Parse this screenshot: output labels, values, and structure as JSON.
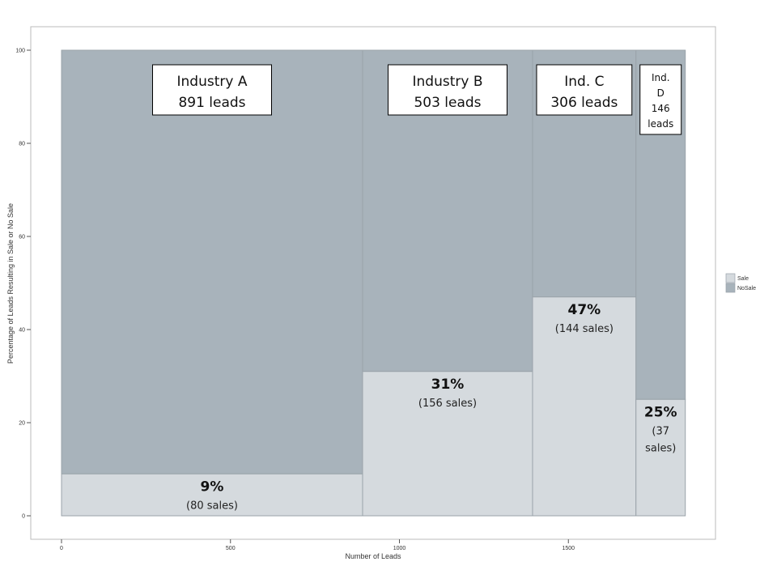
{
  "chart_data": {
    "type": "mosaic",
    "xlabel": "Number of Leads",
    "ylabel": "Percentage of Leads Resulting in Sale or No Sale",
    "xlim": [
      0,
      1846
    ],
    "ylim": [
      0,
      100
    ],
    "x_ticks": [
      0,
      500,
      1000,
      1500
    ],
    "y_ticks": [
      0,
      20,
      40,
      60,
      80,
      100
    ],
    "grid": false,
    "legend": {
      "position": "right",
      "entries": [
        {
          "key": "sale",
          "label": "Sale",
          "color": "#d5dade"
        },
        {
          "key": "nosale",
          "label": "NoSale",
          "color": "#a8b3bb"
        }
      ]
    },
    "segments": [
      {
        "leads": 891,
        "sales": 80,
        "sale_pct": 9,
        "box_lines": [
          "Industry A",
          "891 leads"
        ],
        "pct_text": "9%",
        "sub_lines": [
          "(80 sales)"
        ]
      },
      {
        "leads": 503,
        "sales": 156,
        "sale_pct": 31,
        "box_lines": [
          "Industry B",
          "503 leads"
        ],
        "pct_text": "31%",
        "sub_lines": [
          "(156 sales)"
        ]
      },
      {
        "leads": 306,
        "sales": 144,
        "sale_pct": 47,
        "box_lines": [
          "Ind. C",
          "306 leads"
        ],
        "pct_text": "47%",
        "sub_lines": [
          "(144 sales)"
        ]
      },
      {
        "leads": 146,
        "sales": 37,
        "sale_pct": 25,
        "box_lines": [
          "Ind.",
          "D",
          "146",
          "leads"
        ],
        "pct_text": "25%",
        "sub_lines": [
          "(37",
          "sales)"
        ]
      }
    ]
  }
}
